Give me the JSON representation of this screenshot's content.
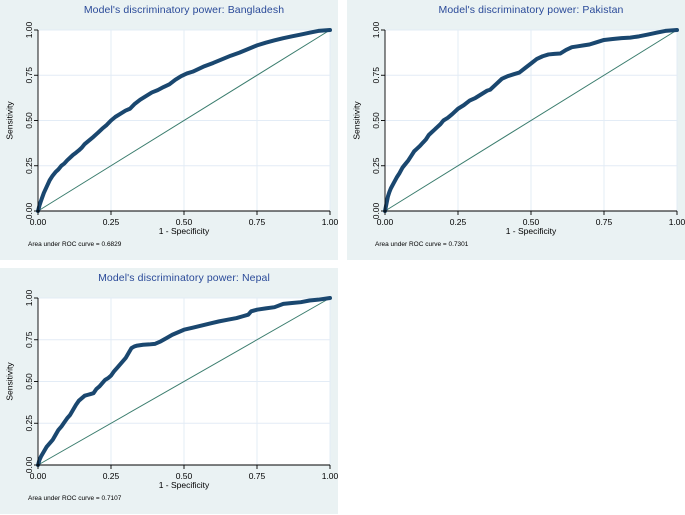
{
  "theme": {
    "page_bg": "#ffffff",
    "panel_bg": "#eaf2f3",
    "plot_bg": "#ffffff",
    "grid_color": "#e3ecf6",
    "axis_color": "#000000",
    "tick_color": "#000000",
    "text_color": "#000000",
    "title_color": "#2a4a99",
    "curve_color": "#1a476f",
    "ref_line_color": "#3b7d6e"
  },
  "chart_data": [
    {
      "type": "line",
      "id": "bangladesh",
      "title": "Model's discriminatory power: Bangladesh",
      "xlabel": "1 - Specificity",
      "ylabel": "Sensitivity",
      "note": "Area under ROC curve = 0.6829",
      "auc": 0.6829,
      "xlim": [
        0,
        1
      ],
      "ylim": [
        0,
        1
      ],
      "grid": true,
      "legend": "none",
      "xticks": {
        "values": [
          0,
          0.25,
          0.5,
          0.75,
          1
        ],
        "labels": [
          "0.00",
          "0.25",
          "0.50",
          "0.75",
          "1.00"
        ]
      },
      "yticks": {
        "values": [
          0,
          0.25,
          0.5,
          0.75,
          1
        ],
        "labels": [
          "0.00",
          "0.25",
          "0.50",
          "0.75",
          "1.00"
        ]
      },
      "series": [
        {
          "name": "ROC curve",
          "role": "roc",
          "color_key": "curve_color",
          "points": [
            [
              0,
              0
            ],
            [
              0.005,
              0.03
            ],
            [
              0.01,
              0.055
            ],
            [
              0.02,
              0.1
            ],
            [
              0.03,
              0.135
            ],
            [
              0.04,
              0.17
            ],
            [
              0.05,
              0.195
            ],
            [
              0.06,
              0.215
            ],
            [
              0.07,
              0.23
            ],
            [
              0.08,
              0.25
            ],
            [
              0.09,
              0.262
            ],
            [
              0.1,
              0.28
            ],
            [
              0.11,
              0.295
            ],
            [
              0.12,
              0.31
            ],
            [
              0.13,
              0.322
            ],
            [
              0.14,
              0.335
            ],
            [
              0.15,
              0.35
            ],
            [
              0.16,
              0.37
            ],
            [
              0.175,
              0.39
            ],
            [
              0.19,
              0.41
            ],
            [
              0.205,
              0.432
            ],
            [
              0.22,
              0.455
            ],
            [
              0.235,
              0.475
            ],
            [
              0.25,
              0.5
            ],
            [
              0.265,
              0.52
            ],
            [
              0.28,
              0.535
            ],
            [
              0.3,
              0.555
            ],
            [
              0.315,
              0.565
            ],
            [
              0.33,
              0.59
            ],
            [
              0.35,
              0.615
            ],
            [
              0.37,
              0.635
            ],
            [
              0.39,
              0.655
            ],
            [
              0.41,
              0.668
            ],
            [
              0.43,
              0.685
            ],
            [
              0.45,
              0.7
            ],
            [
              0.47,
              0.725
            ],
            [
              0.49,
              0.745
            ],
            [
              0.51,
              0.76
            ],
            [
              0.53,
              0.77
            ],
            [
              0.55,
              0.785
            ],
            [
              0.57,
              0.8
            ],
            [
              0.6,
              0.818
            ],
            [
              0.63,
              0.838
            ],
            [
              0.66,
              0.858
            ],
            [
              0.69,
              0.875
            ],
            [
              0.72,
              0.895
            ],
            [
              0.75,
              0.915
            ],
            [
              0.78,
              0.93
            ],
            [
              0.81,
              0.943
            ],
            [
              0.84,
              0.955
            ],
            [
              0.87,
              0.965
            ],
            [
              0.9,
              0.975
            ],
            [
              0.93,
              0.985
            ],
            [
              0.96,
              0.995
            ],
            [
              1,
              1
            ]
          ]
        },
        {
          "name": "Reference line",
          "role": "reference",
          "color_key": "ref_line_color",
          "points": [
            [
              0,
              0
            ],
            [
              1,
              1
            ]
          ]
        }
      ]
    },
    {
      "type": "line",
      "id": "pakistan",
      "title": "Model's discriminatory power: Pakistan",
      "xlabel": "1 - Specificity",
      "ylabel": "Sensitivity",
      "note": "Area under ROC curve = 0.7301",
      "auc": 0.7301,
      "xlim": [
        0,
        1
      ],
      "ylim": [
        0,
        1
      ],
      "grid": true,
      "legend": "none",
      "xticks": {
        "values": [
          0,
          0.25,
          0.5,
          0.75,
          1
        ],
        "labels": [
          "0.00",
          "0.25",
          "0.50",
          "0.75",
          "1.00"
        ]
      },
      "yticks": {
        "values": [
          0,
          0.25,
          0.5,
          0.75,
          1
        ],
        "labels": [
          "0.00",
          "0.25",
          "0.50",
          "0.75",
          "1.00"
        ]
      },
      "series": [
        {
          "name": "ROC curve",
          "role": "roc",
          "color_key": "curve_color",
          "points": [
            [
              0,
              0
            ],
            [
              0.005,
              0.04
            ],
            [
              0.01,
              0.08
            ],
            [
              0.015,
              0.105
            ],
            [
              0.02,
              0.125
            ],
            [
              0.03,
              0.155
            ],
            [
              0.04,
              0.185
            ],
            [
              0.05,
              0.21
            ],
            [
              0.06,
              0.24
            ],
            [
              0.07,
              0.26
            ],
            [
              0.08,
              0.28
            ],
            [
              0.09,
              0.305
            ],
            [
              0.1,
              0.33
            ],
            [
              0.11,
              0.345
            ],
            [
              0.12,
              0.36
            ],
            [
              0.13,
              0.378
            ],
            [
              0.14,
              0.395
            ],
            [
              0.15,
              0.42
            ],
            [
              0.16,
              0.435
            ],
            [
              0.17,
              0.45
            ],
            [
              0.18,
              0.465
            ],
            [
              0.19,
              0.48
            ],
            [
              0.2,
              0.5
            ],
            [
              0.215,
              0.515
            ],
            [
              0.23,
              0.535
            ],
            [
              0.25,
              0.565
            ],
            [
              0.27,
              0.585
            ],
            [
              0.29,
              0.61
            ],
            [
              0.31,
              0.625
            ],
            [
              0.33,
              0.645
            ],
            [
              0.35,
              0.665
            ],
            [
              0.36,
              0.67
            ],
            [
              0.38,
              0.7
            ],
            [
              0.4,
              0.73
            ],
            [
              0.42,
              0.745
            ],
            [
              0.44,
              0.755
            ],
            [
              0.46,
              0.765
            ],
            [
              0.48,
              0.79
            ],
            [
              0.5,
              0.815
            ],
            [
              0.52,
              0.84
            ],
            [
              0.54,
              0.855
            ],
            [
              0.56,
              0.865
            ],
            [
              0.58,
              0.868
            ],
            [
              0.6,
              0.87
            ],
            [
              0.62,
              0.89
            ],
            [
              0.64,
              0.905
            ],
            [
              0.66,
              0.91
            ],
            [
              0.68,
              0.915
            ],
            [
              0.7,
              0.92
            ],
            [
              0.72,
              0.93
            ],
            [
              0.75,
              0.945
            ],
            [
              0.78,
              0.95
            ],
            [
              0.81,
              0.955
            ],
            [
              0.84,
              0.958
            ],
            [
              0.87,
              0.965
            ],
            [
              0.9,
              0.975
            ],
            [
              0.93,
              0.985
            ],
            [
              0.96,
              0.995
            ],
            [
              1,
              1
            ]
          ]
        },
        {
          "name": "Reference line",
          "role": "reference",
          "color_key": "ref_line_color",
          "points": [
            [
              0,
              0
            ],
            [
              1,
              1
            ]
          ]
        }
      ]
    },
    {
      "type": "line",
      "id": "nepal",
      "title": "Model's discriminatory power: Nepal",
      "xlabel": "1 - Specificity",
      "ylabel": "Sensitivity",
      "note": "Area under ROC curve = 0.7107",
      "auc": 0.7107,
      "xlim": [
        0,
        1
      ],
      "ylim": [
        0,
        1
      ],
      "grid": true,
      "legend": "none",
      "xticks": {
        "values": [
          0,
          0.25,
          0.5,
          0.75,
          1
        ],
        "labels": [
          "0.00",
          "0.25",
          "0.50",
          "0.75",
          "1.00"
        ]
      },
      "yticks": {
        "values": [
          0,
          0.25,
          0.5,
          0.75,
          1
        ],
        "labels": [
          "0.00",
          "0.25",
          "0.50",
          "0.75",
          "1.00"
        ]
      },
      "series": [
        {
          "name": "ROC curve",
          "role": "roc",
          "color_key": "curve_color",
          "points": [
            [
              0,
              0
            ],
            [
              0.005,
              0.03
            ],
            [
              0.01,
              0.05
            ],
            [
              0.02,
              0.08
            ],
            [
              0.03,
              0.11
            ],
            [
              0.04,
              0.13
            ],
            [
              0.05,
              0.15
            ],
            [
              0.06,
              0.18
            ],
            [
              0.07,
              0.21
            ],
            [
              0.08,
              0.23
            ],
            [
              0.09,
              0.255
            ],
            [
              0.1,
              0.28
            ],
            [
              0.11,
              0.3
            ],
            [
              0.12,
              0.33
            ],
            [
              0.13,
              0.36
            ],
            [
              0.14,
              0.385
            ],
            [
              0.15,
              0.4
            ],
            [
              0.16,
              0.415
            ],
            [
              0.17,
              0.42
            ],
            [
              0.18,
              0.425
            ],
            [
              0.19,
              0.43
            ],
            [
              0.2,
              0.455
            ],
            [
              0.21,
              0.47
            ],
            [
              0.22,
              0.49
            ],
            [
              0.23,
              0.51
            ],
            [
              0.24,
              0.52
            ],
            [
              0.25,
              0.535
            ],
            [
              0.26,
              0.56
            ],
            [
              0.27,
              0.58
            ],
            [
              0.28,
              0.6
            ],
            [
              0.29,
              0.62
            ],
            [
              0.3,
              0.64
            ],
            [
              0.31,
              0.67
            ],
            [
              0.32,
              0.7
            ],
            [
              0.33,
              0.71
            ],
            [
              0.34,
              0.715
            ],
            [
              0.36,
              0.72
            ],
            [
              0.38,
              0.722
            ],
            [
              0.4,
              0.725
            ],
            [
              0.42,
              0.74
            ],
            [
              0.44,
              0.76
            ],
            [
              0.46,
              0.78
            ],
            [
              0.48,
              0.795
            ],
            [
              0.5,
              0.81
            ],
            [
              0.53,
              0.822
            ],
            [
              0.56,
              0.835
            ],
            [
              0.59,
              0.848
            ],
            [
              0.62,
              0.86
            ],
            [
              0.65,
              0.87
            ],
            [
              0.68,
              0.88
            ],
            [
              0.7,
              0.89
            ],
            [
              0.72,
              0.9
            ],
            [
              0.73,
              0.92
            ],
            [
              0.75,
              0.93
            ],
            [
              0.78,
              0.938
            ],
            [
              0.81,
              0.945
            ],
            [
              0.84,
              0.965
            ],
            [
              0.87,
              0.97
            ],
            [
              0.9,
              0.975
            ],
            [
              0.93,
              0.985
            ],
            [
              0.96,
              0.99
            ],
            [
              1,
              1
            ]
          ]
        },
        {
          "name": "Reference line",
          "role": "reference",
          "color_key": "ref_line_color",
          "points": [
            [
              0,
              0
            ],
            [
              1,
              1
            ]
          ]
        }
      ]
    }
  ]
}
